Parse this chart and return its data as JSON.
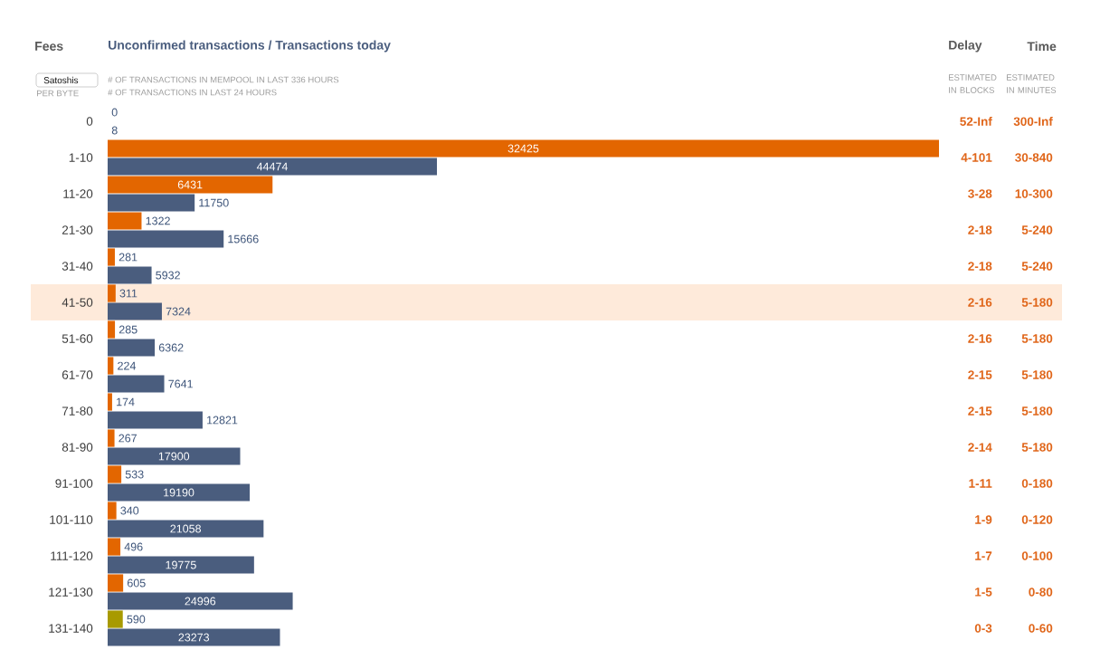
{
  "chart_data": [
    {
      "type": "bar",
      "orientation": "horizontal",
      "title": "Unconfirmed transactions / Transactions today",
      "ylabel": "Fees",
      "xlabel": "# OF TRANSACTIONS IN MEMPOOL IN LAST 336 HOURS",
      "annotations": [
        "Satoshis",
        "PER BYTE"
      ],
      "categories": [
        "0",
        "1-10",
        "11-20",
        "21-30",
        "31-40",
        "41-50",
        "51-60",
        "61-70",
        "71-80",
        "81-90",
        "91-100",
        "101-110",
        "111-120",
        "121-130",
        "131-140"
      ],
      "series": [
        {
          "colors": [
            "#e36600",
            "#e36600",
            "#e36600",
            "#e36600",
            "#e36600",
            "#e36600",
            "#e36600",
            "#e36600",
            "#e36600",
            "#e36600",
            "#e36600",
            "#e36600",
            "#e36600",
            "#e36600",
            "#a89a00"
          ],
          "values": [
            0,
            32425,
            6431,
            1322,
            281,
            311,
            285,
            224,
            174,
            267,
            533,
            340,
            496,
            605,
            590
          ]
        }
      ],
      "xlim": [
        0,
        32425
      ],
      "tick_labels": "y",
      "data_labels": true,
      "bands": [
        {
          "axis": "y",
          "from": "41-50",
          "to": "41-50",
          "color": "#feeada"
        }
      ]
    },
    {
      "type": "bar",
      "orientation": "horizontal",
      "xlabel": "# OF TRANSACTIONS IN LAST 24 HOURS",
      "categories": [
        null,
        null,
        null,
        null,
        null,
        null,
        null,
        null,
        null,
        null,
        null,
        null,
        null,
        null,
        null
      ],
      "series": [
        {
          "color": "#4a5d7e",
          "values": [
            8,
            44474,
            11750,
            15666,
            5932,
            7324,
            6362,
            7641,
            12821,
            17900,
            19190,
            21058,
            19775,
            24996,
            23273
          ]
        }
      ],
      "xlim": [
        0,
        44474
      ],
      "data_labels": true
    },
    {
      "type": "other",
      "title": "Delay",
      "subtitle": "ESTIMATED IN BLOCKS",
      "annotations": [
        "52-Inf",
        "4-101",
        "3-28",
        "2-18",
        "2-18",
        "2-16",
        "2-16",
        "2-15",
        "2-15",
        "2-14",
        "1-11",
        "1-9",
        "1-7",
        "1-5",
        "0-3"
      ]
    },
    {
      "type": "other",
      "title": "Time",
      "subtitle": "ESTIMATED IN MINUTES",
      "annotations": [
        "300-Inf",
        "30-840",
        "10-300",
        "5-240",
        "5-240",
        "5-180",
        "5-180",
        "5-180",
        "5-180",
        "5-180",
        "0-180",
        "0-120",
        "0-100",
        "0-80",
        "0-60"
      ]
    }
  ]
}
